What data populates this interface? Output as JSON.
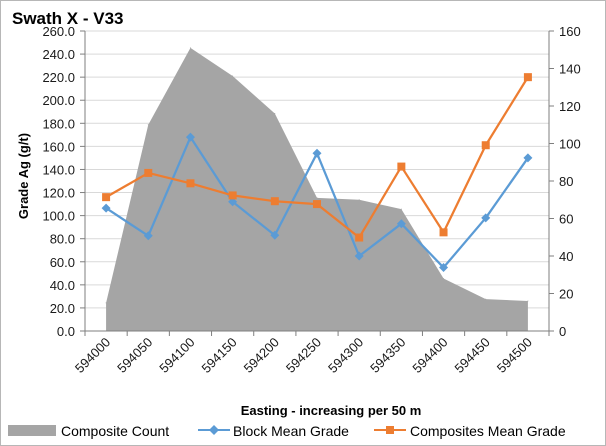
{
  "chart_data": {
    "type": "combo",
    "title": "Swath X - V33",
    "xlabel": "Easting - increasing per 50 m",
    "ylabel": "Grade Ag (g/t)",
    "y2label": "",
    "categories": [
      "594000",
      "594050",
      "594100",
      "594150",
      "594200",
      "594250",
      "594300",
      "594350",
      "594400",
      "594450",
      "594500"
    ],
    "ylim": [
      0,
      260
    ],
    "y_ticks": [
      "0.0",
      "20.0",
      "40.0",
      "60.0",
      "80.0",
      "100.0",
      "120.0",
      "140.0",
      "160.0",
      "180.0",
      "200.0",
      "220.0",
      "240.0",
      "260.0"
    ],
    "y2lim": [
      0,
      160
    ],
    "y2_ticks": [
      "0",
      "20",
      "40",
      "60",
      "80",
      "100",
      "120",
      "140",
      "160"
    ],
    "gridlines": true,
    "legend_position": "bottom",
    "series": [
      {
        "name": "Composite Count",
        "kind": "area",
        "axis": "secondary",
        "color": "#a5a5a5",
        "values": [
          15,
          110,
          151,
          136,
          116,
          71,
          70,
          65,
          28,
          17,
          16
        ]
      },
      {
        "name": "Block Mean Grade",
        "kind": "line",
        "marker": "diamond",
        "axis": "primary",
        "color": "#5b9bd5",
        "values": [
          106.5,
          82.5,
          168,
          112,
          83,
          154,
          65,
          93,
          55,
          98,
          150
        ]
      },
      {
        "name": "Composites Mean Grade",
        "kind": "line",
        "marker": "square",
        "axis": "primary",
        "color": "#ed7d31",
        "values": [
          116,
          137,
          128,
          117.5,
          112.5,
          110,
          81,
          142.5,
          85.5,
          161,
          220
        ]
      }
    ]
  }
}
